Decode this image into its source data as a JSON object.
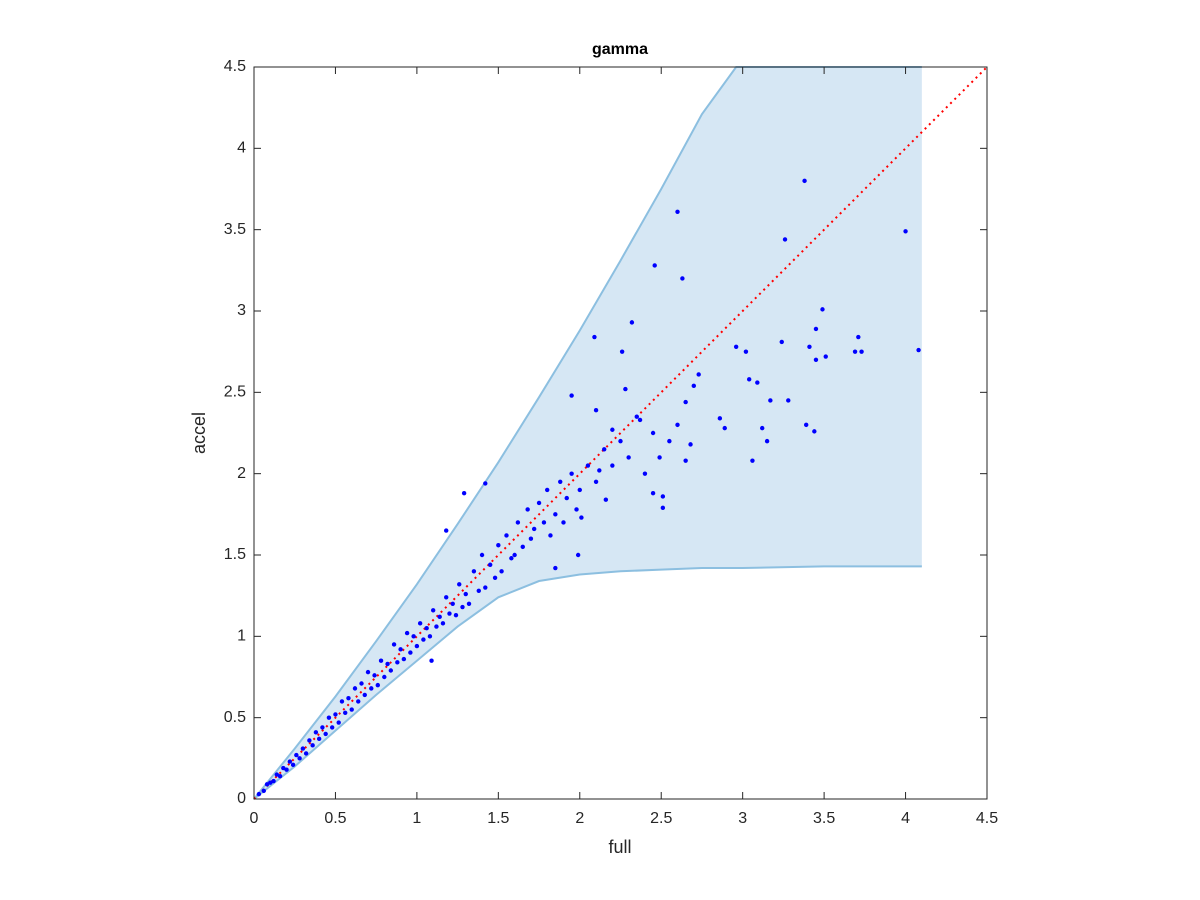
{
  "chart_data": {
    "type": "scatter",
    "title": "gamma",
    "x_label": "full",
    "y_label": "accel",
    "xlim": [
      0,
      4.5
    ],
    "ylim": [
      0,
      4.5
    ],
    "xticks": [
      0,
      0.5,
      1,
      1.5,
      2,
      2.5,
      3,
      3.5,
      4,
      4.5
    ],
    "yticks": [
      0,
      0.5,
      1,
      1.5,
      2,
      2.5,
      3,
      3.5,
      4,
      4.5
    ],
    "series": [
      {
        "type": "area",
        "color": "#d6e7f4",
        "edge_color": "#8cbfe0",
        "x": [
          0,
          0.25,
          0.5,
          0.75,
          1,
          1.25,
          1.5,
          1.75,
          2,
          2.25,
          2.5,
          2.75,
          2.96,
          3,
          3.5,
          4.1
        ],
        "upper": [
          0,
          0.31,
          0.63,
          0.97,
          1.32,
          1.69,
          2.07,
          2.47,
          2.88,
          3.31,
          3.75,
          4.21,
          4.5,
          4.5,
          4.5,
          4.5
        ],
        "lower": [
          0,
          0.2,
          0.42,
          0.64,
          0.85,
          1.06,
          1.24,
          1.34,
          1.38,
          1.4,
          1.41,
          1.42,
          1.42,
          1.42,
          1.43,
          1.43
        ]
      },
      {
        "type": "line",
        "color": "#ff0000",
        "dash": "dotted",
        "x": [
          0,
          4.5
        ],
        "values": [
          0,
          4.5
        ]
      },
      {
        "type": "scatter",
        "color": "#0000ff",
        "x": [
          0.03,
          0.06,
          0.08,
          0.1,
          0.12,
          0.14,
          0.16,
          0.18,
          0.2,
          0.22,
          0.24,
          0.26,
          0.28,
          0.3,
          0.32,
          0.34,
          0.36,
          0.38,
          0.4,
          0.42,
          0.44,
          0.46,
          0.48,
          0.5,
          0.52,
          0.54,
          0.56,
          0.58,
          0.6,
          0.62,
          0.64,
          0.66,
          0.68,
          0.7,
          0.72,
          0.74,
          0.76,
          0.78,
          0.8,
          0.82,
          0.84,
          0.86,
          0.88,
          0.9,
          0.92,
          0.94,
          0.96,
          0.98,
          1.0,
          1.02,
          1.04,
          1.06,
          1.08,
          1.1,
          1.12,
          1.14,
          1.16,
          1.18,
          1.2,
          1.22,
          1.24,
          1.26,
          1.28,
          1.3,
          1.32,
          1.35,
          1.38,
          1.4,
          1.42,
          1.45,
          1.48,
          1.5,
          1.52,
          1.55,
          1.58,
          1.6,
          1.62,
          1.65,
          1.68,
          1.7,
          1.72,
          1.75,
          1.78,
          1.8,
          1.82,
          1.85,
          1.88,
          1.9,
          1.92,
          1.95,
          1.98,
          2.0,
          2.05,
          2.1,
          2.15,
          2.2,
          2.25,
          2.3,
          2.35,
          2.4,
          2.45,
          2.55,
          2.6,
          3.38,
          2.6,
          4.0,
          3.26,
          2.46,
          2.63,
          3.49,
          2.32,
          4.08,
          3.71,
          3.73,
          3.69,
          3.45,
          3.41,
          3.45,
          3.51,
          3.24,
          2.96,
          3.02,
          3.04,
          3.09,
          3.17,
          3.28,
          3.39,
          3.44,
          3.12,
          3.15,
          3.06,
          2.89,
          2.86,
          2.73,
          2.7,
          2.65,
          2.68,
          2.65,
          2.49,
          2.51,
          2.45,
          2.51,
          2.28,
          2.26,
          2.09,
          1.95,
          2.1,
          2.2,
          2.37,
          2.12,
          2.16,
          2.01,
          1.99,
          1.85,
          1.29,
          1.42,
          1.18,
          1.09
        ],
        "values": [
          0.03,
          0.05,
          0.09,
          0.1,
          0.11,
          0.15,
          0.14,
          0.19,
          0.18,
          0.23,
          0.21,
          0.27,
          0.25,
          0.31,
          0.28,
          0.36,
          0.33,
          0.41,
          0.37,
          0.44,
          0.4,
          0.5,
          0.44,
          0.52,
          0.47,
          0.6,
          0.53,
          0.62,
          0.55,
          0.68,
          0.6,
          0.71,
          0.64,
          0.78,
          0.68,
          0.76,
          0.7,
          0.85,
          0.75,
          0.83,
          0.79,
          0.95,
          0.84,
          0.92,
          0.86,
          1.02,
          0.9,
          1.0,
          0.94,
          1.08,
          0.98,
          1.05,
          1.0,
          1.16,
          1.06,
          1.12,
          1.08,
          1.24,
          1.14,
          1.2,
          1.13,
          1.32,
          1.18,
          1.26,
          1.2,
          1.4,
          1.28,
          1.5,
          1.3,
          1.44,
          1.36,
          1.56,
          1.4,
          1.62,
          1.48,
          1.5,
          1.7,
          1.55,
          1.78,
          1.6,
          1.66,
          1.82,
          1.7,
          1.9,
          1.62,
          1.75,
          1.95,
          1.7,
          1.85,
          2.0,
          1.78,
          1.9,
          2.05,
          1.95,
          2.15,
          2.05,
          2.2,
          2.1,
          2.35,
          2.0,
          2.25,
          2.2,
          2.3,
          3.8,
          3.61,
          3.49,
          3.44,
          3.28,
          3.2,
          3.01,
          2.93,
          2.76,
          2.84,
          2.75,
          2.75,
          2.89,
          2.78,
          2.7,
          2.72,
          2.81,
          2.78,
          2.75,
          2.58,
          2.56,
          2.45,
          2.45,
          2.3,
          2.26,
          2.28,
          2.2,
          2.08,
          2.28,
          2.34,
          2.61,
          2.54,
          2.44,
          2.18,
          2.08,
          2.1,
          1.86,
          1.88,
          1.79,
          2.52,
          2.75,
          2.84,
          2.48,
          2.39,
          2.27,
          2.33,
          2.02,
          1.84,
          1.73,
          1.5,
          1.42,
          1.88,
          1.94,
          1.65,
          0.85
        ]
      }
    ]
  }
}
